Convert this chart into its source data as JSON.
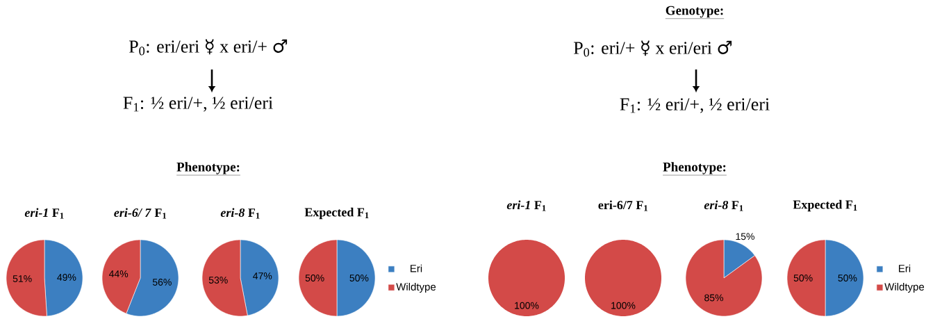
{
  "chart_data": [
    {
      "type": "pie",
      "title": "*eri-1* F$_{1}$",
      "values": [
        49,
        51
      ],
      "colors": [
        "#3c7fc1",
        "#d34a48"
      ],
      "value_labels": [
        "49%",
        "51%"
      ],
      "annotations": [
        "P$_{0}$: eri/eri ☿ x eri/+ ♂",
        "F$_{1}$: ½ eri/+, ½ eri/eri",
        "Phenotype:"
      ]
    },
    {
      "type": "pie",
      "title": "*eri-6/ 7* F$_{1}$",
      "values": [
        56,
        44
      ],
      "colors": [
        "#3c7fc1",
        "#d34a48"
      ],
      "value_labels": [
        "56%",
        "44%"
      ]
    },
    {
      "type": "pie",
      "title": "*eri-8* F$_{1}$",
      "values": [
        47,
        53
      ],
      "colors": [
        "#3c7fc1",
        "#d34a48"
      ],
      "value_labels": [
        "47%",
        "53%"
      ]
    },
    {
      "type": "pie",
      "title": "Expected F$_{1}$",
      "categories": [
        "Eri",
        "Wildtype"
      ],
      "values": [
        50,
        50
      ],
      "colors": [
        "#3c7fc1",
        "#d34a48"
      ],
      "value_labels": [
        "50%",
        "50%"
      ],
      "legend": "right"
    },
    {
      "type": "pie",
      "title": "*eri-1* F$_{1}$",
      "values": [
        0,
        100
      ],
      "colors": [
        "#3c7fc1",
        "#d34a48"
      ],
      "value_labels": [
        null,
        "100%"
      ],
      "annotations": [
        "Genotype:",
        "P$_{0}$: eri/+ ☿ x eri/eri ♂",
        "F$_{1}$: ½ eri/+, ½ eri/eri",
        "Phenotype:"
      ]
    },
    {
      "type": "pie",
      "title": "eri-6/7 F$_{1}$",
      "values": [
        0,
        100
      ],
      "colors": [
        "#3c7fc1",
        "#d34a48"
      ],
      "value_labels": [
        null,
        "100%"
      ]
    },
    {
      "type": "pie",
      "title": "*eri-8* F$_{1}$",
      "values": [
        15,
        85
      ],
      "colors": [
        "#3c7fc1",
        "#d34a48"
      ],
      "value_labels": [
        "15%",
        "85%"
      ]
    },
    {
      "type": "pie",
      "title": "Expected F$_{1}$",
      "categories": [
        "Eri",
        "Wildtype"
      ],
      "values": [
        50,
        50
      ],
      "colors": [
        "#3c7fc1",
        "#d34a48"
      ],
      "value_labels": [
        "50%",
        "50%"
      ],
      "legend": "right"
    }
  ]
}
